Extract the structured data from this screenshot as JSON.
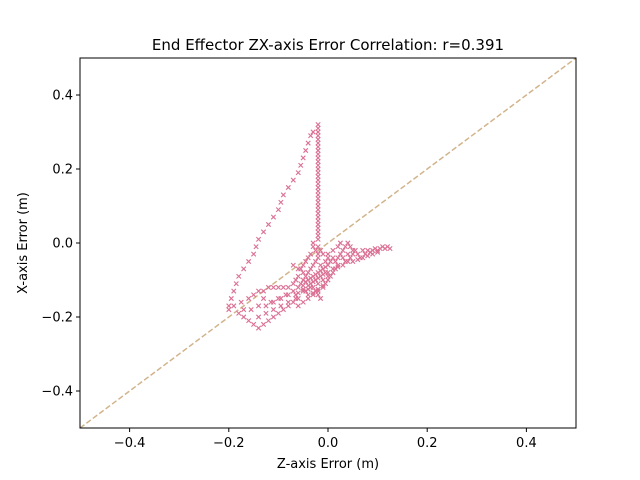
{
  "chart_data": {
    "type": "scatter",
    "title": "End Effector ZX-axis Error Correlation: r=0.391",
    "xlabel": "Z-axis Error (m)",
    "ylabel": "X-axis Error (m)",
    "xlim": [
      -0.5,
      0.5
    ],
    "ylim": [
      -0.5,
      0.5
    ],
    "xticks": [
      -0.4,
      -0.2,
      0.0,
      0.2,
      0.4
    ],
    "yticks": [
      -0.4,
      -0.2,
      0.0,
      0.2,
      0.4
    ],
    "xtick_labels": [
      "−0.4",
      "−0.2",
      "0.0",
      "0.2",
      "0.4"
    ],
    "ytick_labels": [
      "−0.4",
      "−0.2",
      "0.0",
      "0.2",
      "0.4"
    ],
    "grid": false,
    "marker": "x",
    "marker_color": "#db7093",
    "reference_line": {
      "style": "dashed",
      "color": "#d2b48c",
      "slope": 1,
      "intercept": 0
    },
    "series": [
      {
        "points": [
          [
            -0.02,
            0.32
          ],
          [
            -0.02,
            0.31
          ],
          [
            -0.02,
            0.3
          ],
          [
            -0.02,
            0.29
          ],
          [
            -0.02,
            0.28
          ],
          [
            -0.02,
            0.27
          ],
          [
            -0.02,
            0.26
          ],
          [
            -0.02,
            0.25
          ],
          [
            -0.02,
            0.24
          ],
          [
            -0.02,
            0.23
          ],
          [
            -0.02,
            0.22
          ],
          [
            -0.02,
            0.21
          ],
          [
            -0.02,
            0.2
          ],
          [
            -0.02,
            0.19
          ],
          [
            -0.02,
            0.18
          ],
          [
            -0.02,
            0.17
          ],
          [
            -0.02,
            0.16
          ],
          [
            -0.02,
            0.15
          ],
          [
            -0.02,
            0.14
          ],
          [
            -0.02,
            0.13
          ],
          [
            -0.02,
            0.12
          ],
          [
            -0.02,
            0.11
          ],
          [
            -0.02,
            0.1
          ],
          [
            -0.02,
            0.09
          ],
          [
            -0.02,
            0.08
          ],
          [
            -0.02,
            0.07
          ],
          [
            -0.02,
            0.06
          ],
          [
            -0.02,
            0.05
          ],
          [
            -0.02,
            0.04
          ],
          [
            -0.02,
            0.03
          ],
          [
            -0.02,
            0.02
          ],
          [
            -0.02,
            0.01
          ],
          [
            -0.03,
            0.3
          ],
          [
            -0.035,
            0.29
          ],
          [
            -0.04,
            0.27
          ],
          [
            -0.045,
            0.25
          ],
          [
            -0.05,
            0.23
          ],
          [
            -0.055,
            0.21
          ],
          [
            -0.06,
            0.19
          ],
          [
            -0.07,
            0.17
          ],
          [
            -0.08,
            0.15
          ],
          [
            -0.09,
            0.13
          ],
          [
            -0.095,
            0.11
          ],
          [
            -0.1,
            0.09
          ],
          [
            -0.11,
            0.07
          ],
          [
            -0.12,
            0.05
          ],
          [
            -0.13,
            0.03
          ],
          [
            -0.14,
            0.01
          ],
          [
            -0.145,
            -0.01
          ],
          [
            -0.15,
            -0.03
          ],
          [
            -0.16,
            -0.05
          ],
          [
            -0.17,
            -0.07
          ],
          [
            -0.18,
            -0.09
          ],
          [
            -0.185,
            -0.11
          ],
          [
            -0.19,
            -0.13
          ],
          [
            -0.195,
            -0.15
          ],
          [
            -0.2,
            -0.17
          ],
          [
            -0.2,
            -0.18
          ],
          [
            -0.19,
            -0.17
          ],
          [
            -0.175,
            -0.16
          ],
          [
            -0.16,
            -0.15
          ],
          [
            -0.15,
            -0.14
          ],
          [
            -0.14,
            -0.13
          ],
          [
            -0.13,
            -0.13
          ],
          [
            -0.12,
            -0.12
          ],
          [
            -0.11,
            -0.12
          ],
          [
            -0.1,
            -0.12
          ],
          [
            -0.09,
            -0.12
          ],
          [
            -0.08,
            -0.12
          ],
          [
            -0.18,
            -0.19
          ],
          [
            -0.17,
            -0.2
          ],
          [
            -0.16,
            -0.21
          ],
          [
            -0.15,
            -0.22
          ],
          [
            -0.14,
            -0.23
          ],
          [
            -0.13,
            -0.22
          ],
          [
            -0.12,
            -0.21
          ],
          [
            -0.11,
            -0.2
          ],
          [
            -0.1,
            -0.19
          ],
          [
            -0.09,
            -0.18
          ],
          [
            -0.08,
            -0.17
          ],
          [
            -0.07,
            -0.16
          ],
          [
            -0.06,
            -0.15
          ],
          [
            -0.17,
            -0.18
          ],
          [
            -0.155,
            -0.18
          ],
          [
            -0.14,
            -0.17
          ],
          [
            -0.125,
            -0.17
          ],
          [
            -0.11,
            -0.16
          ],
          [
            -0.095,
            -0.15
          ],
          [
            -0.08,
            -0.14
          ],
          [
            -0.065,
            -0.14
          ],
          [
            -0.05,
            -0.13
          ],
          [
            -0.035,
            -0.12
          ],
          [
            -0.13,
            -0.15
          ],
          [
            -0.115,
            -0.16
          ],
          [
            -0.1,
            -0.15
          ],
          [
            -0.085,
            -0.14
          ],
          [
            -0.07,
            -0.13
          ],
          [
            -0.14,
            -0.2
          ],
          [
            -0.125,
            -0.19
          ],
          [
            -0.11,
            -0.18
          ],
          [
            -0.095,
            -0.17
          ],
          [
            -0.08,
            -0.16
          ],
          [
            -0.065,
            -0.15
          ],
          [
            -0.07,
            -0.06
          ],
          [
            -0.06,
            -0.07
          ],
          [
            -0.05,
            -0.08
          ],
          [
            -0.045,
            -0.09
          ],
          [
            -0.04,
            -0.1
          ],
          [
            -0.035,
            -0.11
          ],
          [
            -0.03,
            -0.12
          ],
          [
            -0.025,
            -0.13
          ],
          [
            -0.02,
            -0.14
          ],
          [
            -0.015,
            -0.15
          ],
          [
            -0.06,
            -0.12
          ],
          [
            -0.055,
            -0.11
          ],
          [
            -0.05,
            -0.1
          ],
          [
            -0.045,
            -0.13
          ],
          [
            -0.04,
            -0.14
          ],
          [
            -0.04,
            -0.08
          ],
          [
            -0.035,
            -0.07
          ],
          [
            -0.03,
            -0.06
          ],
          [
            -0.03,
            -0.09
          ],
          [
            -0.025,
            -0.05
          ],
          [
            -0.025,
            -0.1
          ],
          [
            -0.02,
            -0.04
          ],
          [
            -0.02,
            -0.08
          ],
          [
            -0.02,
            -0.11
          ],
          [
            -0.015,
            -0.06
          ],
          [
            -0.015,
            -0.09
          ],
          [
            -0.01,
            -0.03
          ],
          [
            -0.01,
            -0.07
          ],
          [
            -0.01,
            -0.1
          ],
          [
            -0.005,
            -0.05
          ],
          [
            -0.005,
            -0.08
          ],
          [
            0.0,
            -0.04
          ],
          [
            0.0,
            -0.06
          ],
          [
            0.0,
            -0.09
          ],
          [
            -0.03,
            -0.01
          ],
          [
            -0.025,
            -0.02
          ],
          [
            -0.02,
            -0.03
          ],
          [
            -0.02,
            -0.01
          ],
          [
            -0.015,
            -0.02
          ],
          [
            -0.03,
            0.0
          ],
          [
            -0.035,
            -0.03
          ],
          [
            -0.04,
            -0.04
          ],
          [
            -0.045,
            -0.05
          ],
          [
            -0.05,
            -0.06
          ],
          [
            -0.055,
            -0.07
          ],
          [
            -0.06,
            -0.09
          ],
          [
            -0.065,
            -0.1
          ],
          [
            -0.07,
            -0.11
          ],
          [
            0.005,
            -0.05
          ],
          [
            0.01,
            -0.04
          ],
          [
            0.015,
            -0.05
          ],
          [
            0.02,
            -0.04
          ],
          [
            0.025,
            -0.03
          ],
          [
            0.03,
            -0.04
          ],
          [
            0.035,
            -0.05
          ],
          [
            0.04,
            -0.03
          ],
          [
            0.045,
            -0.04
          ],
          [
            0.05,
            -0.03
          ],
          [
            0.055,
            -0.02
          ],
          [
            0.06,
            -0.03
          ],
          [
            0.065,
            -0.04
          ],
          [
            0.07,
            -0.02
          ],
          [
            0.075,
            -0.03
          ],
          [
            0.08,
            -0.02
          ],
          [
            0.085,
            -0.025
          ],
          [
            0.09,
            -0.02
          ],
          [
            0.095,
            -0.015
          ],
          [
            0.1,
            -0.02
          ],
          [
            0.105,
            -0.015
          ],
          [
            0.11,
            -0.01
          ],
          [
            0.115,
            -0.015
          ],
          [
            0.12,
            -0.01
          ],
          [
            0.125,
            -0.015
          ],
          [
            0.0,
            -0.08
          ],
          [
            0.01,
            -0.07
          ],
          [
            0.02,
            -0.06
          ],
          [
            0.03,
            -0.06
          ],
          [
            0.04,
            -0.05
          ],
          [
            0.05,
            -0.05
          ],
          [
            0.06,
            -0.045
          ],
          [
            0.07,
            -0.04
          ],
          [
            0.08,
            -0.035
          ],
          [
            0.09,
            -0.03
          ],
          [
            0.1,
            -0.025
          ],
          [
            0.0,
            -0.03
          ],
          [
            0.01,
            -0.02
          ],
          [
            0.02,
            -0.01
          ],
          [
            0.025,
            0.0
          ],
          [
            0.03,
            -0.02
          ],
          [
            0.035,
            -0.01
          ],
          [
            0.04,
            0.0
          ],
          [
            0.045,
            -0.01
          ],
          [
            0.05,
            -0.02
          ],
          [
            -0.01,
            -0.12
          ],
          [
            -0.005,
            -0.11
          ],
          [
            0.0,
            -0.1
          ],
          [
            0.005,
            -0.09
          ],
          [
            0.01,
            -0.08
          ],
          [
            0.015,
            -0.07
          ],
          [
            0.02,
            -0.065
          ],
          [
            -0.02,
            -0.13
          ],
          [
            -0.03,
            -0.14
          ],
          [
            -0.04,
            -0.15
          ],
          [
            -0.05,
            -0.16
          ],
          [
            -0.06,
            -0.17
          ],
          [
            -0.06,
            -0.135
          ],
          [
            -0.05,
            -0.125
          ],
          [
            -0.04,
            -0.115
          ],
          [
            -0.03,
            -0.105
          ],
          [
            -0.02,
            -0.095
          ],
          [
            -0.01,
            -0.085
          ],
          [
            -0.045,
            -0.105
          ],
          [
            -0.035,
            -0.095
          ],
          [
            -0.025,
            -0.085
          ],
          [
            -0.015,
            -0.075
          ],
          [
            -0.005,
            -0.065
          ],
          [
            -0.05,
            -0.115
          ],
          [
            -0.04,
            -0.125
          ],
          [
            -0.03,
            -0.135
          ],
          [
            -0.02,
            -0.125
          ],
          [
            -0.01,
            -0.115
          ]
        ]
      }
    ]
  }
}
